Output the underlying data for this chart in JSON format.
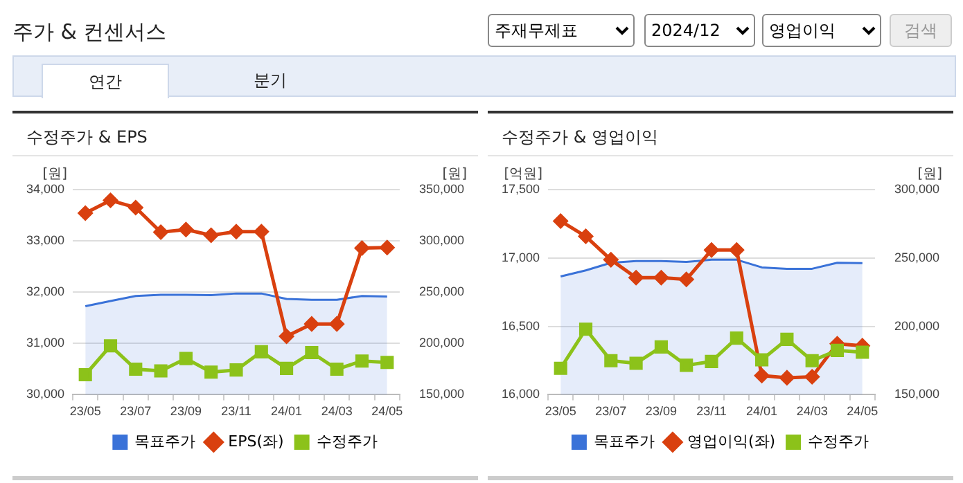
{
  "chart_data": [
    {
      "type": "other",
      "title": "주가 & 컨센서스",
      "annotations": [
        "주재무제표",
        "2024/12",
        "영업이익",
        "검색",
        "연간",
        "분기"
      ]
    },
    {
      "type": "line",
      "title": "수정주가 & EPS",
      "ylabel": "[원]",
      "y2label": "[원]",
      "categories": [
        "23/05",
        null,
        "23/07",
        null,
        "23/09",
        null,
        "23/11",
        null,
        "24/01",
        null,
        "24/03",
        null,
        "24/05"
      ],
      "series": [
        {
          "name": "목표주가",
          "type": "area",
          "axis": "y2",
          "color": "#3a72d8",
          "marker": "none",
          "values": [
            236300,
            241300,
            246300,
            247500,
            247500,
            247100,
            248700,
            248700,
            243400,
            242500,
            242500,
            246300,
            245800
          ]
        },
        {
          "name": "EPS(좌)",
          "type": "line",
          "axis": "y",
          "color": "#d9400f",
          "marker": "diamond",
          "values": [
            33540,
            33790,
            33650,
            33170,
            33220,
            33110,
            33180,
            33180,
            31140,
            31380,
            31380,
            32860,
            32870
          ]
        },
        {
          "name": "수정주가",
          "type": "line",
          "axis": "y2",
          "color": "#8cc21a",
          "marker": "square",
          "values": [
            169500,
            197700,
            174900,
            173200,
            185300,
            172000,
            174100,
            191900,
            175700,
            191100,
            174900,
            182800,
            181500
          ]
        }
      ],
      "ylim": [
        30000,
        34000
      ],
      "yticks": [
        {
          "value": 30000,
          "label": "30,000"
        },
        {
          "value": 31000,
          "label": "31,000"
        },
        {
          "value": 32000,
          "label": "32,000"
        },
        {
          "value": 33000,
          "label": "33,000"
        },
        {
          "value": 34000,
          "label": "34,000"
        }
      ],
      "y2lim": [
        150000,
        350000
      ],
      "y2ticks": [
        {
          "value": 150000,
          "label": "150,000"
        },
        {
          "value": 200000,
          "label": "200,000"
        },
        {
          "value": 250000,
          "label": "250,000"
        },
        {
          "value": 300000,
          "label": "300,000"
        },
        {
          "value": 350000,
          "label": "350,000"
        }
      ],
      "grid": "y",
      "legend": "bottom",
      "line_style": "solid"
    },
    {
      "type": "line",
      "title": "수정주가 & 영업이익",
      "ylabel": "[억원]",
      "y2label": "[원]",
      "categories": [
        "23/05",
        null,
        "23/07",
        null,
        "23/09",
        null,
        "23/11",
        null,
        "24/01",
        null,
        "24/03",
        null,
        "24/05"
      ],
      "series": [
        {
          "name": "목표주가",
          "type": "area",
          "axis": "y2",
          "color": "#3a72d8",
          "marker": "none",
          "values": [
            236500,
            240900,
            246500,
            247700,
            247700,
            247100,
            248700,
            248700,
            243100,
            242100,
            242100,
            246500,
            246200
          ]
        },
        {
          "name": "영업이익(좌)",
          "type": "line",
          "axis": "y",
          "color": "#d9400f",
          "marker": "diamond",
          "values": [
            17270,
            17158,
            16987,
            16856,
            16856,
            16843,
            17058,
            17058,
            16140,
            16124,
            16131,
            16373,
            16358
          ]
        },
        {
          "name": "수정주가",
          "type": "line",
          "axis": "y2",
          "color": "#8cc21a",
          "marker": "square",
          "values": [
            169300,
            197900,
            174900,
            173000,
            184900,
            171500,
            174300,
            191400,
            175500,
            190500,
            174900,
            182400,
            181100
          ]
        }
      ],
      "ylim": [
        16000,
        17500
      ],
      "yticks": [
        {
          "value": 16000,
          "label": "16,000"
        },
        {
          "value": 16500,
          "label": "16,500"
        },
        {
          "value": 17000,
          "label": "17,000"
        },
        {
          "value": 17500,
          "label": "17,500"
        }
      ],
      "y2lim": [
        150000,
        300000
      ],
      "y2ticks": [
        {
          "value": 150000,
          "label": "150,000"
        },
        {
          "value": 200000,
          "label": "200,000"
        },
        {
          "value": 250000,
          "label": "250,000"
        },
        {
          "value": 300000,
          "label": "300,000"
        }
      ],
      "grid": "y",
      "legend": "bottom",
      "line_style": "solid"
    }
  ]
}
